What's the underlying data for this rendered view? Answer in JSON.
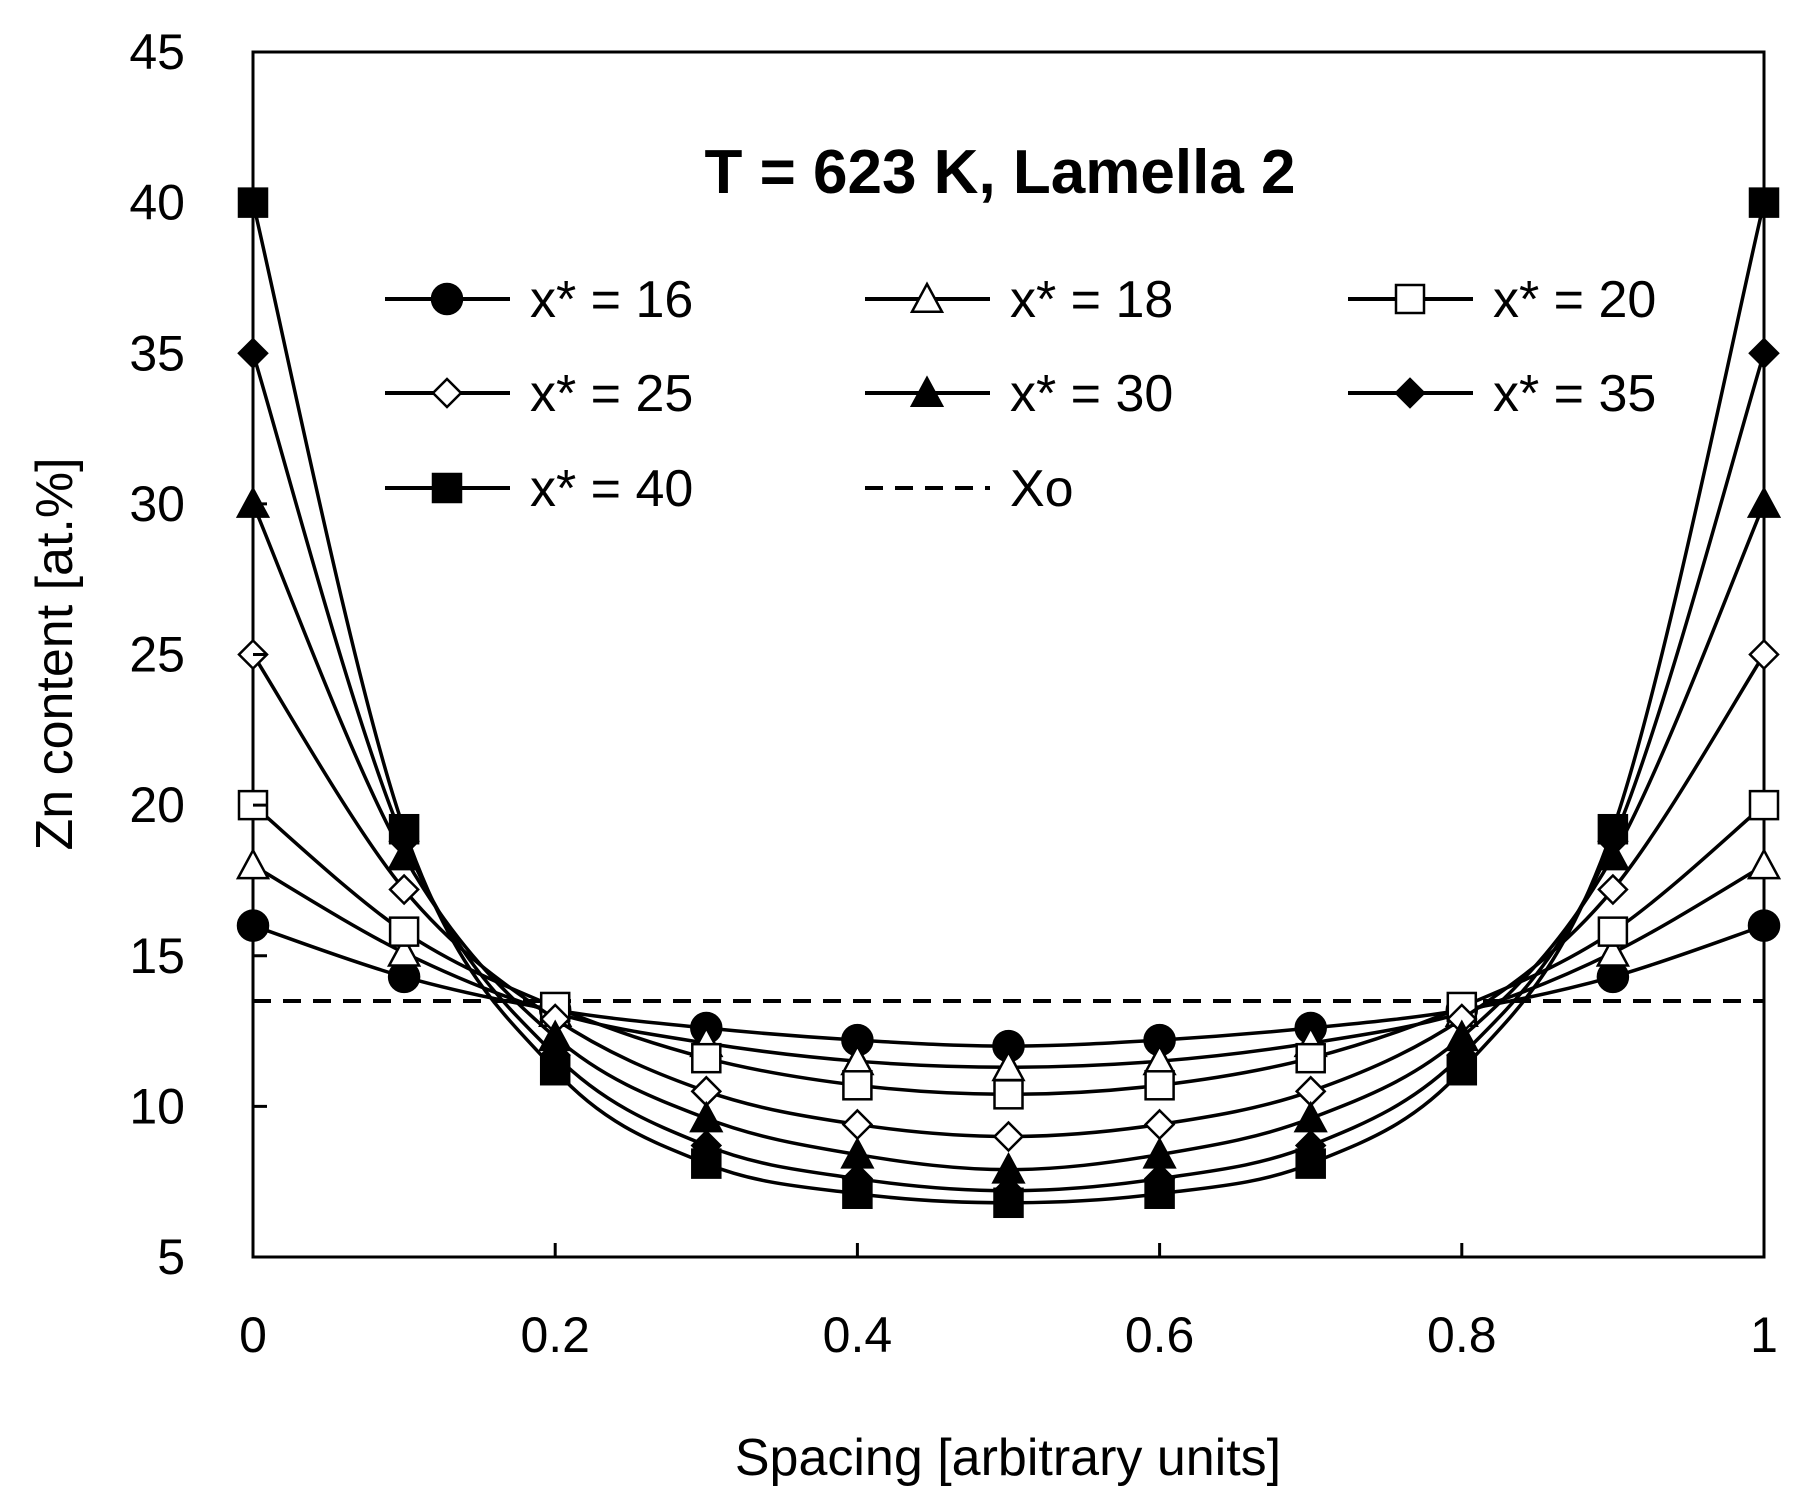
{
  "chart_data": {
    "type": "line",
    "title": "T = 623 K, Lamella 2",
    "xlabel": "Spacing [arbitrary units]",
    "ylabel": "Zn content [at.%]",
    "xlim": [
      0,
      1
    ],
    "ylim": [
      5,
      45
    ],
    "x_ticks": [
      "0",
      "0.2",
      "0.4",
      "0.6",
      "0.8",
      "1"
    ],
    "y_ticks": [
      "5",
      "10",
      "15",
      "20",
      "25",
      "30",
      "35",
      "40",
      "45"
    ],
    "grid": false,
    "legend_position": "top",
    "x": [
      0,
      0.1,
      0.2,
      0.3,
      0.4,
      0.5,
      0.6,
      0.7,
      0.8,
      0.9,
      1.0
    ],
    "series": [
      {
        "name": "x* = 16",
        "marker": "circle-filled",
        "values": [
          16,
          14.3,
          13.2,
          12.6,
          12.2,
          12.0,
          12.2,
          12.6,
          13.2,
          14.3,
          16
        ]
      },
      {
        "name": "x* = 18",
        "marker": "triangle-open",
        "values": [
          18,
          15.1,
          13.1,
          12.1,
          11.5,
          11.3,
          11.5,
          12.1,
          13.1,
          15.1,
          18
        ]
      },
      {
        "name": "x* = 20",
        "marker": "square-open",
        "values": [
          20,
          15.8,
          13.3,
          11.6,
          10.7,
          10.4,
          10.7,
          11.6,
          13.3,
          15.8,
          20
        ]
      },
      {
        "name": "x* = 25",
        "marker": "diamond-open",
        "values": [
          25,
          17.2,
          12.9,
          10.5,
          9.4,
          9.0,
          9.4,
          10.5,
          12.9,
          17.2,
          25
        ]
      },
      {
        "name": "x* = 30",
        "marker": "triangle-filled",
        "values": [
          30,
          18.3,
          12.3,
          9.6,
          8.4,
          7.9,
          8.4,
          9.6,
          12.3,
          18.3,
          30
        ]
      },
      {
        "name": "x* = 35",
        "marker": "diamond-filled",
        "values": [
          35,
          18.8,
          11.7,
          8.7,
          7.6,
          7.2,
          7.6,
          8.7,
          11.7,
          18.8,
          35
        ]
      },
      {
        "name": "x* = 40",
        "marker": "square-filled",
        "values": [
          40,
          19.2,
          11.2,
          8.1,
          7.1,
          6.8,
          7.1,
          8.1,
          11.2,
          19.2,
          40
        ]
      }
    ],
    "reference_line": {
      "name": "Xo",
      "style": "dashed",
      "value": 13.5
    },
    "colors": {
      "line": "#000000",
      "background": "#ffffff"
    }
  }
}
